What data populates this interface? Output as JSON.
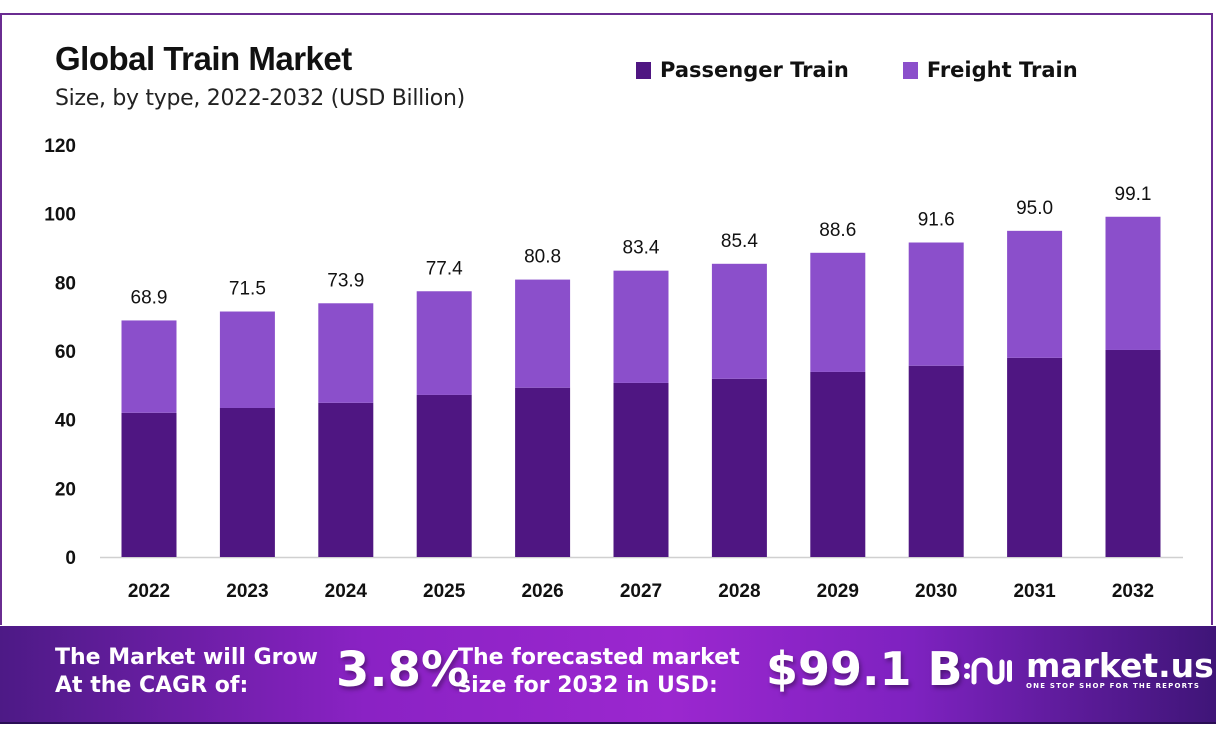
{
  "header": {
    "title": "Global Train Market",
    "subtitle": "Size, by type, 2022-2032 (USD Billion)"
  },
  "legend": [
    {
      "label": "Passenger Train",
      "color": "#4f1682"
    },
    {
      "label": "Freight Train",
      "color": "#8b4fcb"
    }
  ],
  "chart_data": {
    "type": "bar",
    "stacked": true,
    "title": "Global Train Market",
    "subtitle": "Size, by type, 2022-2032 (USD Billion)",
    "xlabel": "",
    "ylabel": "",
    "ylim": [
      0,
      120
    ],
    "yticks": [
      0,
      20,
      40,
      60,
      80,
      100,
      120
    ],
    "grid": false,
    "legend_position": "top-right",
    "categories": [
      "2022",
      "2023",
      "2024",
      "2025",
      "2026",
      "2027",
      "2028",
      "2029",
      "2030",
      "2031",
      "2032"
    ],
    "totals": [
      68.9,
      71.5,
      73.9,
      77.4,
      80.8,
      83.4,
      85.4,
      88.6,
      91.6,
      95.0,
      99.1
    ],
    "total_labels": [
      "68.9",
      "71.5",
      "73.9",
      "77.4",
      "80.8",
      "83.4",
      "85.4",
      "88.6",
      "91.6",
      "95.0",
      "99.1"
    ],
    "series_values_estimated": true,
    "series": [
      {
        "name": "Passenger Train",
        "color": "#4f1682",
        "values": [
          42.0,
          43.4,
          44.9,
          47.2,
          49.3,
          50.7,
          51.9,
          53.9,
          55.7,
          58.0,
          60.3
        ]
      },
      {
        "name": "Freight Train",
        "color": "#8b4fcb",
        "values": [
          26.9,
          28.1,
          29.0,
          30.2,
          31.5,
          32.7,
          33.5,
          34.7,
          35.9,
          37.0,
          38.8
        ]
      }
    ]
  },
  "banner": {
    "cagr_label_line1": "The Market will Grow",
    "cagr_label_line2": "At the CAGR of:",
    "cagr_value": "3.8%",
    "forecast_label_line1": "The forecasted market",
    "forecast_label_line2": "size for 2032 in USD:",
    "forecast_value": "$99.1 B",
    "brand_name": "market.us",
    "brand_tagline": "ONE STOP SHOP FOR THE REPORTS"
  }
}
